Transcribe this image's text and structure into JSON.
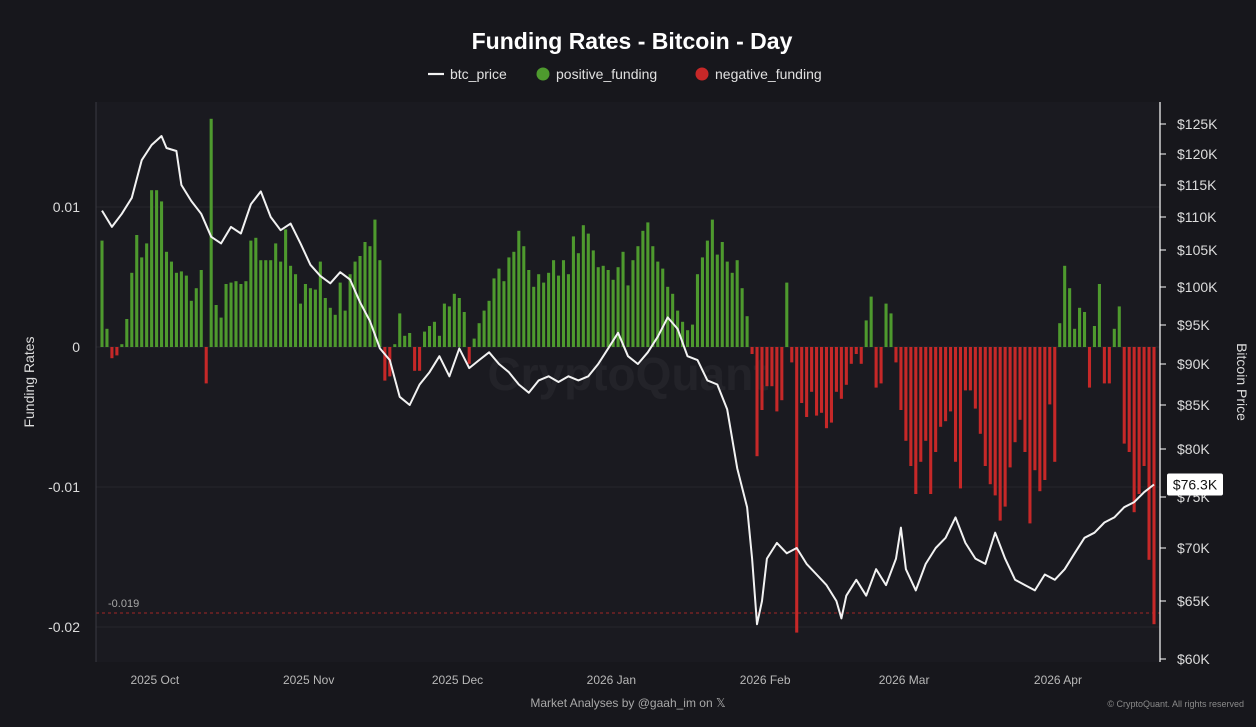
{
  "chart_data": {
    "type": "bar+line",
    "title": "Funding Rates - Bitcoin - Day",
    "legend": [
      {
        "key": "btc_price",
        "label": "btc_price",
        "color": "#f2f2f2",
        "shape": "line"
      },
      {
        "key": "positive_funding",
        "label": "positive_funding",
        "color": "#4e9a2e",
        "shape": "dot"
      },
      {
        "key": "negative_funding",
        "label": "negative_funding",
        "color": "#c62828",
        "shape": "dot"
      }
    ],
    "ylabel_left": "Funding Rates",
    "ylabel_right": "Bitcoin Price",
    "y_left_range": [
      -0.0225,
      0.0175
    ],
    "y_left_ticks": [
      {
        "value": 0.01,
        "label": "0.01"
      },
      {
        "value": 0,
        "label": "0"
      },
      {
        "value": -0.01,
        "label": "-0.01"
      },
      {
        "value": -0.02,
        "label": "-0.02"
      }
    ],
    "y_right_ticks": [
      {
        "value": 125000,
        "label": "$125K"
      },
      {
        "value": 120000,
        "label": "$120K"
      },
      {
        "value": 115000,
        "label": "$115K"
      },
      {
        "value": 110000,
        "label": "$110K"
      },
      {
        "value": 105000,
        "label": "$105K"
      },
      {
        "value": 100000,
        "label": "$100K"
      },
      {
        "value": 95000,
        "label": "$95K"
      },
      {
        "value": 90000,
        "label": "$90K"
      },
      {
        "value": 85000,
        "label": "$85K"
      },
      {
        "value": 80000,
        "label": "$80K"
      },
      {
        "value": 75000,
        "label": "$75K"
      },
      {
        "value": 70000,
        "label": "$70K"
      },
      {
        "value": 65000,
        "label": "$65K"
      },
      {
        "value": 60000,
        "label": "$60K"
      }
    ],
    "x_range": [
      0,
      212
    ],
    "x_ticks": [
      {
        "value": 5,
        "label": "2025 Oct"
      },
      {
        "value": 36,
        "label": "2025 Nov"
      },
      {
        "value": 66,
        "label": "2025 Dec"
      },
      {
        "value": 97,
        "label": "2026 Jan"
      },
      {
        "value": 128,
        "label": "2026 Feb"
      },
      {
        "value": 156,
        "label": "2026 Mar"
      },
      {
        "value": 187,
        "label": "2026 Apr"
      }
    ],
    "reference_line": {
      "value": -0.019,
      "label": "-0.019",
      "color": "#c62828"
    },
    "price_anchors": [
      [
        0,
        111000
      ],
      [
        2,
        108500
      ],
      [
        4,
        110500
      ],
      [
        6,
        113000
      ],
      [
        8,
        119000
      ],
      [
        10,
        121500
      ],
      [
        12,
        123000
      ],
      [
        13,
        121000
      ],
      [
        15,
        120500
      ],
      [
        16,
        115000
      ],
      [
        18,
        112500
      ],
      [
        20,
        110500
      ],
      [
        22,
        107000
      ],
      [
        24,
        106000
      ],
      [
        26,
        108500
      ],
      [
        28,
        107500
      ],
      [
        30,
        112000
      ],
      [
        32,
        114000
      ],
      [
        34,
        110000
      ],
      [
        36,
        108000
      ],
      [
        38,
        109000
      ],
      [
        40,
        106000
      ],
      [
        42,
        103000
      ],
      [
        44,
        101500
      ],
      [
        46,
        100500
      ],
      [
        48,
        102000
      ],
      [
        50,
        101000
      ],
      [
        52,
        98000
      ],
      [
        54,
        95500
      ],
      [
        56,
        92000
      ],
      [
        58,
        90500
      ],
      [
        60,
        86000
      ],
      [
        62,
        85000
      ],
      [
        64,
        87500
      ],
      [
        66,
        89000
      ],
      [
        68,
        91000
      ],
      [
        70,
        88500
      ],
      [
        72,
        92000
      ],
      [
        74,
        89500
      ],
      [
        76,
        90500
      ],
      [
        78,
        91500
      ],
      [
        80,
        90000
      ],
      [
        82,
        89000
      ],
      [
        84,
        87500
      ],
      [
        86,
        86500
      ],
      [
        88,
        88000
      ],
      [
        90,
        88500
      ],
      [
        92,
        87800
      ],
      [
        94,
        88500
      ],
      [
        96,
        88000
      ],
      [
        98,
        88500
      ],
      [
        100,
        90000
      ],
      [
        102,
        92000
      ],
      [
        104,
        94000
      ],
      [
        106,
        91000
      ],
      [
        108,
        90000
      ],
      [
        110,
        91500
      ],
      [
        112,
        93500
      ],
      [
        114,
        96000
      ],
      [
        116,
        94500
      ],
      [
        118,
        91000
      ],
      [
        120,
        90500
      ],
      [
        122,
        88000
      ],
      [
        124,
        87500
      ],
      [
        126,
        84500
      ],
      [
        128,
        78000
      ],
      [
        130,
        74000
      ],
      [
        131,
        69000
      ],
      [
        132,
        63000
      ],
      [
        133,
        65000
      ],
      [
        134,
        69000
      ],
      [
        136,
        70500
      ],
      [
        138,
        69500
      ],
      [
        140,
        70000
      ],
      [
        142,
        68500
      ],
      [
        144,
        67500
      ],
      [
        146,
        66500
      ],
      [
        148,
        65000
      ],
      [
        149,
        63500
      ],
      [
        150,
        65500
      ],
      [
        152,
        67000
      ],
      [
        154,
        65500
      ],
      [
        156,
        68000
      ],
      [
        158,
        66500
      ],
      [
        160,
        69000
      ],
      [
        161,
        72000
      ],
      [
        162,
        68000
      ],
      [
        164,
        66000
      ],
      [
        166,
        68500
      ],
      [
        168,
        70000
      ],
      [
        170,
        71000
      ],
      [
        172,
        73000
      ],
      [
        174,
        70500
      ],
      [
        176,
        69000
      ],
      [
        178,
        68500
      ],
      [
        180,
        71500
      ],
      [
        182,
        69000
      ],
      [
        184,
        67000
      ],
      [
        186,
        66500
      ],
      [
        188,
        66000
      ],
      [
        190,
        67500
      ],
      [
        192,
        67000
      ],
      [
        194,
        68000
      ],
      [
        196,
        69500
      ],
      [
        198,
        71000
      ],
      [
        200,
        71500
      ],
      [
        202,
        72500
      ],
      [
        204,
        73000
      ],
      [
        206,
        74000
      ],
      [
        208,
        74500
      ],
      [
        210,
        75500
      ],
      [
        212,
        76300
      ]
    ],
    "funding_anchors": [
      [
        0,
        0.0076
      ],
      [
        1,
        0.0013
      ],
      [
        2,
        -0.0008
      ],
      [
        3,
        -0.0006
      ],
      [
        4,
        0.0002
      ],
      [
        5,
        0.002
      ],
      [
        6,
        0.0053
      ],
      [
        7,
        0.008
      ],
      [
        8,
        0.0064
      ],
      [
        9,
        0.0074
      ],
      [
        10,
        0.0112
      ],
      [
        11,
        0.0112
      ],
      [
        12,
        0.0104
      ],
      [
        13,
        0.0068
      ],
      [
        14,
        0.0061
      ],
      [
        15,
        0.0053
      ],
      [
        16,
        0.0054
      ],
      [
        17,
        0.0051
      ],
      [
        18,
        0.0033
      ],
      [
        19,
        0.0042
      ],
      [
        20,
        0.0055
      ],
      [
        21,
        -0.0026
      ],
      [
        22,
        0.0163
      ],
      [
        23,
        0.003
      ],
      [
        24,
        0.0021
      ],
      [
        25,
        0.0045
      ],
      [
        26,
        0.0046
      ],
      [
        27,
        0.0047
      ],
      [
        28,
        0.0045
      ],
      [
        29,
        0.0047
      ],
      [
        30,
        0.0076
      ],
      [
        31,
        0.0078
      ],
      [
        32,
        0.0062
      ],
      [
        33,
        0.0062
      ],
      [
        34,
        0.0062
      ],
      [
        35,
        0.0074
      ],
      [
        36,
        0.0061
      ],
      [
        37,
        0.0084
      ],
      [
        38,
        0.0058
      ],
      [
        39,
        0.0052
      ],
      [
        40,
        0.0031
      ],
      [
        41,
        0.0045
      ],
      [
        42,
        0.0042
      ],
      [
        43,
        0.0041
      ],
      [
        44,
        0.0061
      ],
      [
        45,
        0.0035
      ],
      [
        46,
        0.0028
      ],
      [
        47,
        0.0023
      ],
      [
        48,
        0.0046
      ],
      [
        49,
        0.0026
      ],
      [
        50,
        0.0052
      ],
      [
        51,
        0.0061
      ],
      [
        52,
        0.0065
      ],
      [
        53,
        0.0075
      ],
      [
        54,
        0.0072
      ],
      [
        55,
        0.0091
      ],
      [
        56,
        0.0062
      ],
      [
        57,
        -0.0024
      ],
      [
        58,
        -0.0021
      ],
      [
        59,
        0.0002
      ],
      [
        60,
        0.0024
      ],
      [
        61,
        0.0008
      ],
      [
        62,
        0.001
      ],
      [
        63,
        -0.0017
      ],
      [
        64,
        -0.0017
      ],
      [
        65,
        0.0011
      ],
      [
        66,
        0.0015
      ],
      [
        67,
        0.0018
      ],
      [
        68,
        0.0008
      ],
      [
        69,
        0.0031
      ],
      [
        70,
        0.0029
      ],
      [
        71,
        0.0038
      ],
      [
        72,
        0.0035
      ],
      [
        73,
        0.0025
      ],
      [
        74,
        -0.0012
      ],
      [
        75,
        0.0006
      ],
      [
        76,
        0.0017
      ],
      [
        77,
        0.0026
      ],
      [
        78,
        0.0033
      ],
      [
        79,
        0.0049
      ],
      [
        80,
        0.0056
      ],
      [
        81,
        0.0047
      ],
      [
        82,
        0.0064
      ],
      [
        83,
        0.0068
      ],
      [
        84,
        0.0083
      ],
      [
        85,
        0.0072
      ],
      [
        86,
        0.0055
      ],
      [
        87,
        0.0043
      ],
      [
        88,
        0.0052
      ],
      [
        89,
        0.0046
      ],
      [
        90,
        0.0053
      ],
      [
        91,
        0.0062
      ],
      [
        92,
        0.0051
      ],
      [
        93,
        0.0062
      ],
      [
        94,
        0.0052
      ],
      [
        95,
        0.0079
      ],
      [
        96,
        0.0067
      ],
      [
        97,
        0.0087
      ],
      [
        98,
        0.0081
      ],
      [
        99,
        0.0069
      ],
      [
        100,
        0.0057
      ],
      [
        101,
        0.0058
      ],
      [
        102,
        0.0055
      ],
      [
        103,
        0.0048
      ],
      [
        104,
        0.0057
      ],
      [
        105,
        0.0068
      ],
      [
        106,
        0.0044
      ],
      [
        107,
        0.0062
      ],
      [
        108,
        0.0072
      ],
      [
        109,
        0.0083
      ],
      [
        110,
        0.0089
      ],
      [
        111,
        0.0072
      ],
      [
        112,
        0.0061
      ],
      [
        113,
        0.0056
      ],
      [
        114,
        0.0043
      ],
      [
        115,
        0.0038
      ],
      [
        116,
        0.0026
      ],
      [
        117,
        0.0018
      ],
      [
        118,
        0.0012
      ],
      [
        119,
        0.0016
      ],
      [
        120,
        0.0052
      ],
      [
        121,
        0.0064
      ],
      [
        122,
        0.0076
      ],
      [
        123,
        0.0091
      ],
      [
        124,
        0.0066
      ],
      [
        125,
        0.0075
      ],
      [
        126,
        0.0061
      ],
      [
        127,
        0.0053
      ],
      [
        128,
        0.0062
      ],
      [
        129,
        0.0042
      ],
      [
        130,
        0.0022
      ],
      [
        131,
        -0.0005
      ],
      [
        132,
        -0.0078
      ],
      [
        133,
        -0.0045
      ],
      [
        134,
        -0.0028
      ],
      [
        135,
        -0.0028
      ],
      [
        136,
        -0.0046
      ],
      [
        137,
        -0.0038
      ],
      [
        138,
        0.0046
      ],
      [
        139,
        -0.0011
      ],
      [
        140,
        -0.0204
      ],
      [
        141,
        -0.004
      ],
      [
        142,
        -0.005
      ],
      [
        143,
        -0.0032
      ],
      [
        144,
        -0.0049
      ],
      [
        145,
        -0.0047
      ],
      [
        146,
        -0.0058
      ],
      [
        147,
        -0.0054
      ],
      [
        148,
        -0.0032
      ],
      [
        149,
        -0.0037
      ],
      [
        150,
        -0.0027
      ],
      [
        151,
        -0.0012
      ],
      [
        152,
        -0.0005
      ],
      [
        153,
        -0.0012
      ],
      [
        154,
        0.0019
      ],
      [
        155,
        0.0036
      ],
      [
        156,
        -0.0029
      ],
      [
        157,
        -0.0026
      ],
      [
        158,
        0.0031
      ],
      [
        159,
        0.0024
      ],
      [
        160,
        -0.0011
      ],
      [
        161,
        -0.0045
      ],
      [
        162,
        -0.0067
      ],
      [
        163,
        -0.0085
      ],
      [
        164,
        -0.0105
      ],
      [
        165,
        -0.0082
      ],
      [
        166,
        -0.0067
      ],
      [
        167,
        -0.0105
      ],
      [
        168,
        -0.0075
      ],
      [
        169,
        -0.0057
      ],
      [
        170,
        -0.0053
      ],
      [
        171,
        -0.0046
      ],
      [
        172,
        -0.0082
      ],
      [
        173,
        -0.0101
      ],
      [
        174,
        -0.0031
      ],
      [
        175,
        -0.0031
      ],
      [
        176,
        -0.0044
      ],
      [
        177,
        -0.0062
      ],
      [
        178,
        -0.0085
      ],
      [
        179,
        -0.0098
      ],
      [
        180,
        -0.0106
      ],
      [
        181,
        -0.0124
      ],
      [
        182,
        -0.0114
      ],
      [
        183,
        -0.0086
      ],
      [
        184,
        -0.0068
      ],
      [
        185,
        -0.0052
      ],
      [
        186,
        -0.0075
      ],
      [
        187,
        -0.0126
      ],
      [
        188,
        -0.0088
      ],
      [
        189,
        -0.0103
      ],
      [
        190,
        -0.0095
      ],
      [
        191,
        -0.0041
      ],
      [
        192,
        -0.0082
      ],
      [
        193,
        0.0017
      ],
      [
        194,
        0.0058
      ],
      [
        195,
        0.0042
      ],
      [
        196,
        0.0013
      ],
      [
        197,
        0.0028
      ],
      [
        198,
        0.0025
      ],
      [
        199,
        -0.0029
      ],
      [
        200,
        0.0015
      ],
      [
        201,
        0.0045
      ],
      [
        202,
        -0.0026
      ],
      [
        203,
        -0.0026
      ],
      [
        204,
        0.0013
      ],
      [
        205,
        0.0029
      ],
      [
        206,
        -0.0069
      ],
      [
        207,
        -0.0075
      ],
      [
        208,
        -0.0118
      ],
      [
        209,
        -0.0105
      ],
      [
        210,
        -0.0085
      ],
      [
        211,
        -0.0152
      ],
      [
        212,
        -0.0198
      ]
    ],
    "last_price_label": "$76.3K",
    "last_price_value": 76300,
    "watermark": "CryptoQuant"
  },
  "footer": {
    "credit": "Market Analyses by @gaah_im on 𝕏",
    "copyright": "© CryptoQuant. All rights reserved"
  }
}
